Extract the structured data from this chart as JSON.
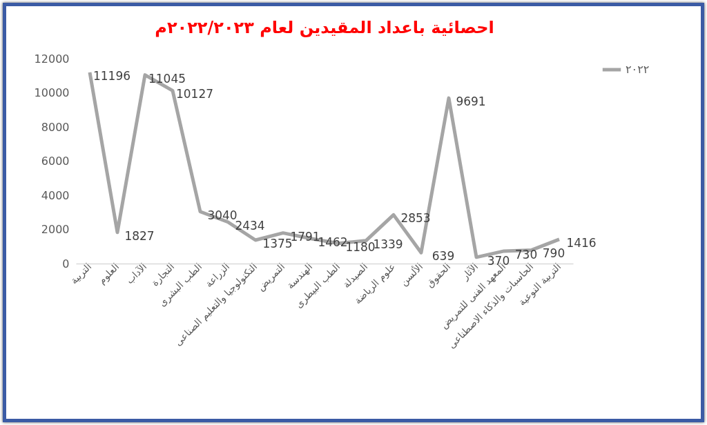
{
  "chart_data": {
    "type": "line",
    "title": "احصائية باعداد المقيدين لعام ٢٠٢٢/٢٠٢٣م",
    "categories": [
      "التربية",
      "العلوم",
      "الآداب",
      "التجارة",
      "الطب البشرى",
      "الزراعة",
      "التكنولوجيا والتعليم الصناعى",
      "التمريض",
      "الهندسة",
      "الطب البيطرى",
      "الصيدلة",
      "علوم الرياضة",
      "الألسن",
      "الحقوق",
      "الآثار",
      "المعهد الفنى للتمريض",
      "الحاسبات والذكاء الاصطناعى",
      "التربية النوعية"
    ],
    "series": [
      {
        "name": "٢٠٢٢",
        "color": "#a5a5a5",
        "values": [
          11196,
          1827,
          11045,
          10127,
          3040,
          2434,
          1375,
          1791,
          1462,
          1180,
          1339,
          2853,
          639,
          9691,
          370,
          730,
          790,
          1416
        ]
      }
    ],
    "ylim": [
      0,
      12000
    ],
    "yticks": [
      0,
      2000,
      4000,
      6000,
      8000,
      10000,
      12000
    ],
    "data_labels": true,
    "legend": "right",
    "grid": false,
    "marker": "none",
    "line_style": "solid"
  }
}
